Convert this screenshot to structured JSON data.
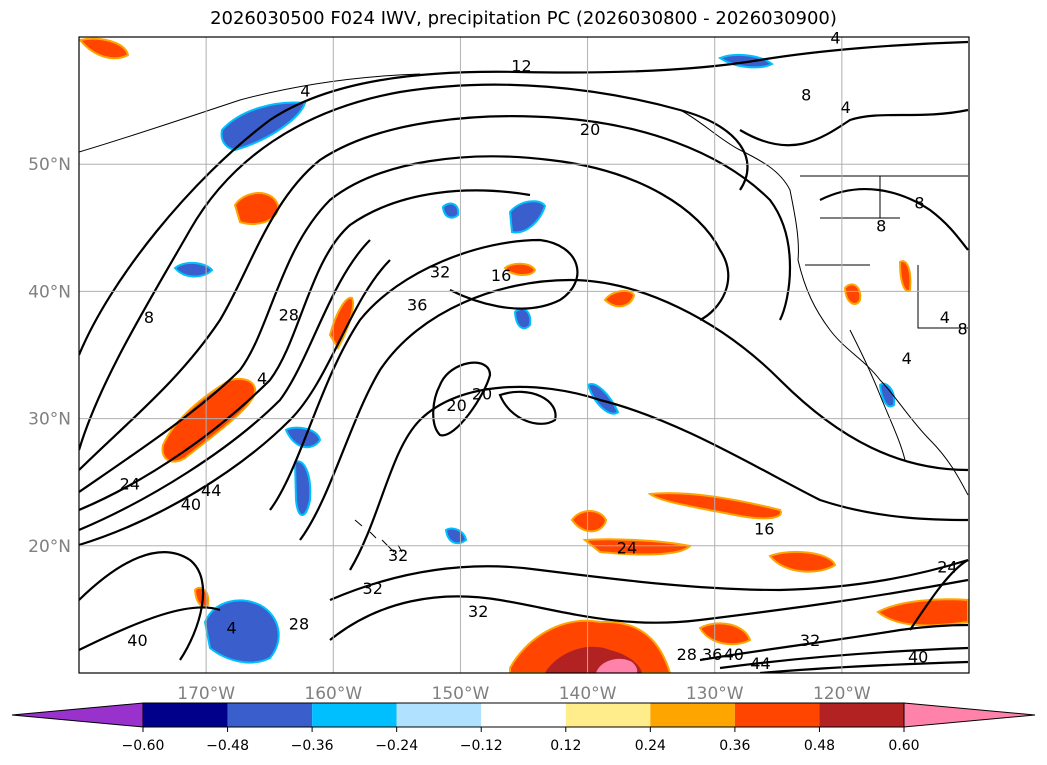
{
  "title": "2026030500 F024 IWV, precipitation PC (2026030800 - 2026030900)",
  "chart_data": {
    "type": "contour-map",
    "title": "2026030500 F024 IWV, precipitation PC (2026030800 - 2026030900)",
    "x_axis": {
      "lon_range": [
        -180,
        -110
      ],
      "ticks": [
        -170,
        -160,
        -150,
        -140,
        -130,
        -120
      ],
      "tick_labels": [
        "170°W",
        "160°W",
        "150°W",
        "140°W",
        "130°W",
        "120°W"
      ]
    },
    "y_axis": {
      "lat_range": [
        10,
        60
      ],
      "ticks": [
        20,
        30,
        40,
        50
      ],
      "tick_labels": [
        "20°N",
        "30°N",
        "40°N",
        "50°N"
      ]
    },
    "contour_variable": "IWV",
    "contour_labels": [
      {
        "text": "4",
        "lon": -120.5,
        "lat": 59.9
      },
      {
        "text": "12",
        "lon": -145.2,
        "lat": 57.7
      },
      {
        "text": "20",
        "lon": -139.8,
        "lat": 52.7
      },
      {
        "text": "4",
        "lon": -162.2,
        "lat": 55.7
      },
      {
        "text": "8",
        "lon": -122.8,
        "lat": 55.4
      },
      {
        "text": "4",
        "lon": -119.7,
        "lat": 54.4
      },
      {
        "text": "8",
        "lon": -116.9,
        "lat": 45.1
      },
      {
        "text": "8",
        "lon": -113.9,
        "lat": 46.9
      },
      {
        "text": "8",
        "lon": -174.5,
        "lat": 37.9
      },
      {
        "text": "32",
        "lon": -151.6,
        "lat": 41.5
      },
      {
        "text": "36",
        "lon": -153.4,
        "lat": 38.9
      },
      {
        "text": "16",
        "lon": -146.8,
        "lat": 41.2
      },
      {
        "text": "28",
        "lon": -163.5,
        "lat": 38.1
      },
      {
        "text": "4",
        "lon": -111.9,
        "lat": 37.9
      },
      {
        "text": "8",
        "lon": -110.5,
        "lat": 37.0
      },
      {
        "text": "4",
        "lon": -114.9,
        "lat": 34.7
      },
      {
        "text": "4",
        "lon": -165.6,
        "lat": 33.1
      },
      {
        "text": "20",
        "lon": -150.3,
        "lat": 31.0
      },
      {
        "text": "20",
        "lon": -148.3,
        "lat": 31.9
      },
      {
        "text": "24",
        "lon": -176.0,
        "lat": 24.8
      },
      {
        "text": "40",
        "lon": -171.2,
        "lat": 23.2
      },
      {
        "text": "44",
        "lon": -169.6,
        "lat": 24.3
      },
      {
        "text": "16",
        "lon": -126.1,
        "lat": 21.3
      },
      {
        "text": "24",
        "lon": -136.9,
        "lat": 19.8
      },
      {
        "text": "32",
        "lon": -154.9,
        "lat": 19.2
      },
      {
        "text": "32",
        "lon": -156.9,
        "lat": 16.6
      },
      {
        "text": "32",
        "lon": -148.6,
        "lat": 14.8
      },
      {
        "text": "28",
        "lon": -162.7,
        "lat": 13.8
      },
      {
        "text": "40",
        "lon": -175.4,
        "lat": 12.5
      },
      {
        "text": "4",
        "lon": -168.0,
        "lat": 13.5
      },
      {
        "text": "24",
        "lon": -111.7,
        "lat": 18.3
      },
      {
        "text": "28",
        "lon": -132.2,
        "lat": 11.4
      },
      {
        "text": "36",
        "lon": -130.2,
        "lat": 11.4
      },
      {
        "text": "40",
        "lon": -128.5,
        "lat": 11.4
      },
      {
        "text": "44",
        "lon": -126.4,
        "lat": 10.7
      },
      {
        "text": "32",
        "lon": -122.5,
        "lat": 12.5
      },
      {
        "text": "40",
        "lon": -114.0,
        "lat": 11.2
      }
    ],
    "shading_variable": "precipitation PC",
    "colorbar": {
      "extend": "both",
      "boundaries": [
        -0.6,
        -0.48,
        -0.36,
        -0.24,
        -0.12,
        0.12,
        0.24,
        0.36,
        0.48,
        0.6
      ],
      "tick_labels": [
        "−0.60",
        "−0.48",
        "−0.36",
        "−0.24",
        "−0.12",
        "0.12",
        "0.24",
        "0.36",
        "0.48",
        "0.60"
      ],
      "colors": [
        "#9932cc",
        "#00008b",
        "#3a5fcd",
        "#00bfff",
        "#b0e2ff",
        "#ffffff",
        "#ffec8b",
        "#ffa500",
        "#ff4500",
        "#b22222",
        "#ff82ab"
      ]
    }
  }
}
